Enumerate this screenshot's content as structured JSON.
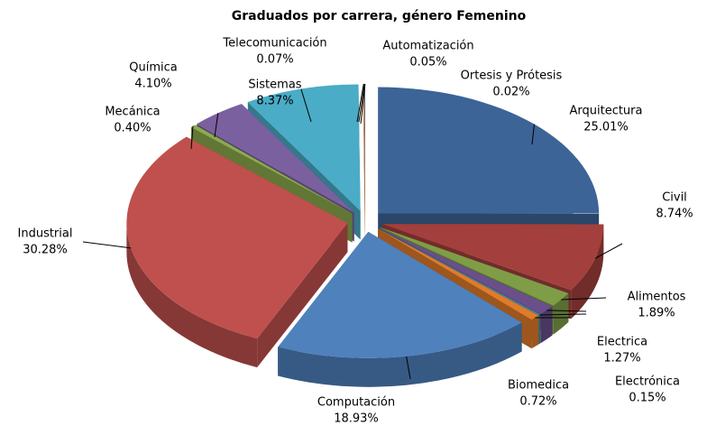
{
  "chart_data": {
    "type": "pie3d",
    "title": "Graduados por carrera, género Femenino",
    "categories": [
      "Arquitectura",
      "Civil",
      "Alimentos",
      "Electrica",
      "Electrónica",
      "Biomedica",
      "Computación",
      "Industrial",
      "Mecánica",
      "Química",
      "Sistemas",
      "Telecomunicación",
      "Automatización",
      "Ortesis y Prótesis"
    ],
    "values": [
      25.01,
      8.74,
      1.89,
      1.27,
      0.15,
      0.72,
      18.93,
      30.28,
      0.4,
      4.1,
      8.37,
      0.07,
      0.05,
      0.02
    ],
    "value_labels": [
      "25.01%",
      "8.74%",
      "1.89%",
      "1.27%",
      "0.15%",
      "0.72%",
      "18.93%",
      "30.28%",
      "0.40%",
      "4.10%",
      "8.37%",
      "0.07%",
      "0.05%",
      "0.02%"
    ],
    "colors": [
      "#3c6496",
      "#a33f3c",
      "#7f9d47",
      "#6a4f8a",
      "#3e8fa5",
      "#e07b2a",
      "#4f81bd",
      "#c0504d",
      "#8caa4c",
      "#7b60a0",
      "#4aacc6",
      "#f09245",
      "#2c4d75",
      "#772c2a"
    ]
  }
}
